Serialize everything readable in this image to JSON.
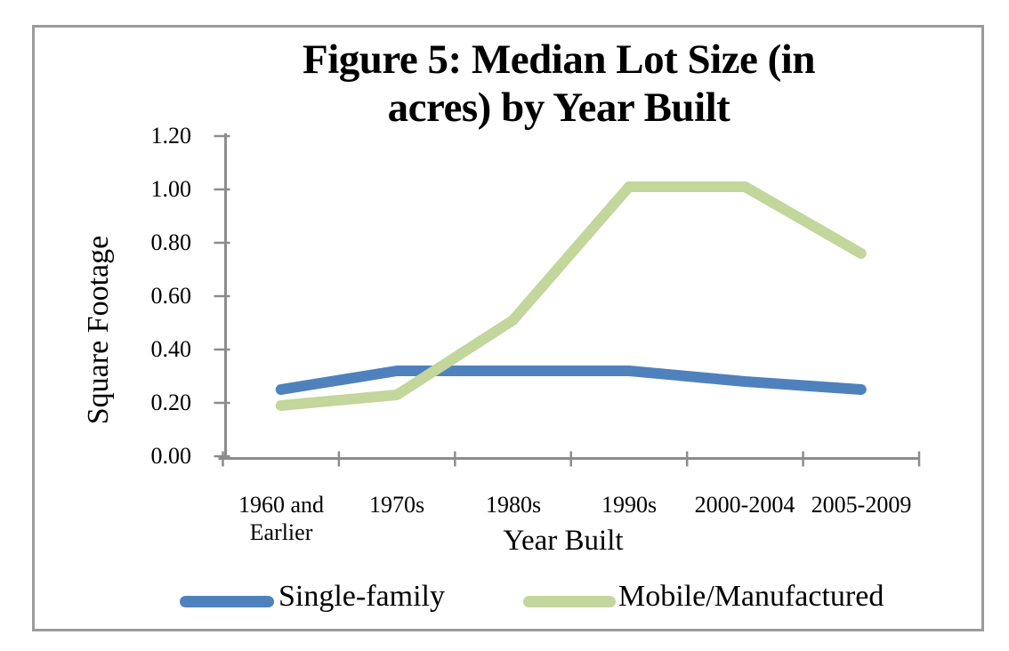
{
  "chart_data": {
    "type": "line",
    "title": "Figure 5: Median Lot Size (in acres) by Year Built",
    "title_lines": [
      "Figure 5: Median Lot Size (in",
      "acres) by Year Built"
    ],
    "xlabel": "Year Built",
    "ylabel": "Square Footage",
    "categories": [
      "1960 and Earlier",
      "1970s",
      "1980s",
      "1990s",
      "2000-2004",
      "2005-2009"
    ],
    "series": [
      {
        "name": "Single-family",
        "color": "#4F81BD",
        "values": [
          0.25,
          0.32,
          0.32,
          0.32,
          0.28,
          0.25
        ]
      },
      {
        "name": "Mobile/Manufactured",
        "color": "#C3D69B",
        "values": [
          0.19,
          0.23,
          0.51,
          1.01,
          1.01,
          0.76
        ]
      }
    ],
    "ylim": [
      0.0,
      1.2
    ],
    "ytick_step": 0.2,
    "ytick_labels": [
      "1.20",
      "1.00",
      "0.80",
      "0.60",
      "0.40",
      "0.20",
      "0.00"
    ],
    "grid": false,
    "legend_position": "bottom",
    "axis_color": "#8C8C8C",
    "border_color": "#9B9B9B"
  }
}
